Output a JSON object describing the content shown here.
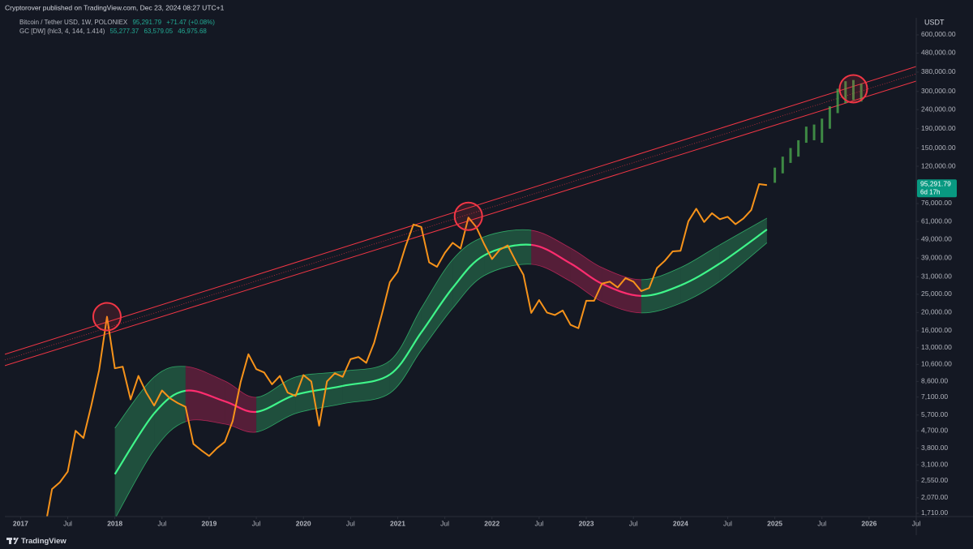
{
  "chart_data": {
    "type": "line",
    "header": "Cryptorover published on TradingView.com, Dec 23, 2024 08:27 UTC+1",
    "legend_last": "95,291.79",
    "legend_change": "+71.47 (+0.08%)",
    "currency": "USDT",
    "brand": "TradingView",
    "log_scale": true,
    "grid": false,
    "xlim": [
      "2016-11",
      "2026-07"
    ],
    "ylim": [
      1643,
      739000
    ],
    "yticks": [
      {
        "value": 600000,
        "label": "600,000.00"
      },
      {
        "value": 480000,
        "label": "480,000.00"
      },
      {
        "value": 380000,
        "label": "380,000.00"
      },
      {
        "value": 300000,
        "label": "300,000.00"
      },
      {
        "value": 240000,
        "label": "240,000.00"
      },
      {
        "value": 190000,
        "label": "190,000.00"
      },
      {
        "value": 150000,
        "label": "150,000.00"
      },
      {
        "value": 120000,
        "label": "120,000.00"
      },
      {
        "value": 76000,
        "label": "76,000.00"
      },
      {
        "value": 61000,
        "label": "61,000.00"
      },
      {
        "value": 49000,
        "label": "49,000.00"
      },
      {
        "value": 39000,
        "label": "39,000.00"
      },
      {
        "value": 31000,
        "label": "31,000.00"
      },
      {
        "value": 25000,
        "label": "25,000.00"
      },
      {
        "value": 20000,
        "label": "20,000.00"
      },
      {
        "value": 16000,
        "label": "16,000.00"
      },
      {
        "value": 13000,
        "label": "13,000.00"
      },
      {
        "value": 10600,
        "label": "10,600.00"
      },
      {
        "value": 8600,
        "label": "8,600.00"
      },
      {
        "value": 7100,
        "label": "7,100.00"
      },
      {
        "value": 5700,
        "label": "5,700.00"
      },
      {
        "value": 4700,
        "label": "4,700.00"
      },
      {
        "value": 3800,
        "label": "3,800.00"
      },
      {
        "value": 3100,
        "label": "3,100.00"
      },
      {
        "value": 2550,
        "label": "2,550.00"
      },
      {
        "value": 2070,
        "label": "2,070.00"
      },
      {
        "value": 1710,
        "label": "1,710.00"
      }
    ],
    "xticks": [
      {
        "value": "2017-01",
        "label": "2017"
      },
      {
        "value": "2017-07",
        "label": "Jul"
      },
      {
        "value": "2018-01",
        "label": "2018"
      },
      {
        "value": "2018-07",
        "label": "Jul"
      },
      {
        "value": "2019-01",
        "label": "2019"
      },
      {
        "value": "2019-07",
        "label": "Jul"
      },
      {
        "value": "2020-01",
        "label": "2020"
      },
      {
        "value": "2020-07",
        "label": "Jul"
      },
      {
        "value": "2021-01",
        "label": "2021"
      },
      {
        "value": "2021-07",
        "label": "Jul"
      },
      {
        "value": "2022-01",
        "label": "2022"
      },
      {
        "value": "2022-07",
        "label": "Jul"
      },
      {
        "value": "2023-01",
        "label": "2023"
      },
      {
        "value": "2023-07",
        "label": "Jul"
      },
      {
        "value": "2024-01",
        "label": "2024"
      },
      {
        "value": "2024-07",
        "label": "Jul"
      },
      {
        "value": "2025-01",
        "label": "2025"
      },
      {
        "value": "2025-07",
        "label": "Jul"
      },
      {
        "value": "2026-01",
        "label": "2026"
      },
      {
        "value": "2026-07",
        "label": "Jul"
      }
    ],
    "x": [
      "2017-04",
      "2017-05",
      "2017-06",
      "2017-07",
      "2017-08",
      "2017-09",
      "2017-10",
      "2017-11",
      "2017-12",
      "2018-01",
      "2018-02",
      "2018-03",
      "2018-04",
      "2018-05",
      "2018-06",
      "2018-07",
      "2018-08",
      "2018-09",
      "2018-10",
      "2018-11",
      "2018-12",
      "2019-01",
      "2019-02",
      "2019-03",
      "2019-04",
      "2019-05",
      "2019-06",
      "2019-07",
      "2019-08",
      "2019-09",
      "2019-10",
      "2019-11",
      "2019-12",
      "2020-01",
      "2020-02",
      "2020-03",
      "2020-04",
      "2020-05",
      "2020-06",
      "2020-07",
      "2020-08",
      "2020-09",
      "2020-10",
      "2020-11",
      "2020-12",
      "2021-01",
      "2021-02",
      "2021-03",
      "2021-04",
      "2021-05",
      "2021-06",
      "2021-07",
      "2021-08",
      "2021-09",
      "2021-10",
      "2021-11",
      "2021-12",
      "2022-01",
      "2022-02",
      "2022-03",
      "2022-04",
      "2022-05",
      "2022-06",
      "2022-07",
      "2022-08",
      "2022-09",
      "2022-10",
      "2022-11",
      "2022-12",
      "2023-01",
      "2023-02",
      "2023-03",
      "2023-04",
      "2023-05",
      "2023-06",
      "2023-07",
      "2023-08",
      "2023-09",
      "2023-10",
      "2023-11",
      "2023-12",
      "2024-01",
      "2024-02",
      "2024-03",
      "2024-04",
      "2024-05",
      "2024-06",
      "2024-07",
      "2024-08",
      "2024-09",
      "2024-10",
      "2024-11",
      "2024-12"
    ],
    "series": [
      {
        "name": "Bitcoin / Tether USD, 1W, POLONIEX",
        "color": "#f7931a",
        "values": [
          1350,
          2300,
          2500,
          2850,
          4700,
          4300,
          6400,
          9900,
          19000,
          10100,
          10300,
          6900,
          9200,
          7500,
          6400,
          7700,
          7000,
          6600,
          6300,
          4000,
          3700,
          3450,
          3800,
          4100,
          5300,
          8500,
          12000,
          10000,
          9600,
          8300,
          9200,
          7500,
          7200,
          9300,
          8600,
          5000,
          8600,
          9500,
          9100,
          11300,
          11600,
          10800,
          13800,
          19700,
          29000,
          33000,
          45000,
          58800,
          57000,
          37000,
          35000,
          41500,
          47000,
          43800,
          64000,
          57000,
          46300,
          38500,
          43200,
          45500,
          37700,
          31800,
          19900,
          23300,
          20000,
          19400,
          20500,
          17200,
          16500,
          23100,
          23100,
          28500,
          29200,
          27200,
          30500,
          29200,
          26000,
          27000,
          34500,
          37700,
          42300,
          42600,
          61200,
          71300,
          60600,
          67500,
          62700,
          64600,
          59000,
          63300,
          70200,
          96400,
          95291.79
        ]
      }
    ],
    "last_price": {
      "value": 95291.79,
      "label": "95,291.79"
    },
    "countdown": "6d 17h",
    "band": {
      "name": "GC [DW] (hlc3, 4, 144, 1.414)",
      "value_labels": [
        "55,277.37",
        "63,579.05",
        "46,975.68"
      ],
      "x": [
        "2018-01",
        "2018-06",
        "2018-10",
        "2019-03",
        "2019-07",
        "2019-12",
        "2020-06",
        "2020-12",
        "2021-04",
        "2021-08",
        "2021-12",
        "2022-06",
        "2022-11",
        "2023-03",
        "2023-08",
        "2024-01",
        "2024-06",
        "2024-12"
      ],
      "upper": [
        4858,
        9080,
        10330,
        8640,
        7080,
        9080,
        9740,
        11080,
        21100,
        38300,
        50600,
        54800,
        44040,
        34700,
        29900,
        34700,
        45830,
        63579.05
      ],
      "mid": [
        2760,
        5810,
        7675,
        6740,
        5925,
        7300,
        8140,
        9355,
        15670,
        27080,
        40280,
        45830,
        36490,
        28450,
        24510,
        27880,
        36490,
        55277.37
      ],
      "lower": [
        1597,
        3715,
        5260,
        5105,
        4625,
        5810,
        6545,
        7445,
        12600,
        21100,
        31430,
        36120,
        29310,
        22860,
        19900,
        22410,
        29310,
        46975.68
      ],
      "colors": [
        "#3ff58a",
        "#3ff58a",
        "#ff2d6f",
        "#ff2d6f",
        "#3ff58a",
        "#3ff58a",
        "#3ff58a",
        "#3ff58a",
        "#3ff58a",
        "#3ff58a",
        "#3ff58a",
        "#ff2d6f",
        "#ff2d6f",
        "#ff2d6f",
        "#3ff58a",
        "#3ff58a",
        "#3ff58a",
        "#3ff58a"
      ]
    },
    "trendlines": [
      {
        "color": "#f23645",
        "x": [
          "2016-11",
          "2026-07"
        ],
        "values": [
          11990,
          407300
        ]
      },
      {
        "color": "#f23645",
        "x": [
          "2016-11",
          "2026-07"
        ],
        "values": [
          10430,
          340700
        ]
      }
    ],
    "projection": {
      "color": "#4caf50",
      "x": [
        "2025-01",
        "2025-02",
        "2025-03",
        "2025-04",
        "2025-05",
        "2025-06",
        "2025-07",
        "2025-08",
        "2025-09",
        "2025-10",
        "2025-11",
        "2025-12"
      ],
      "low": [
        98000,
        110000,
        125000,
        135000,
        160000,
        165000,
        160000,
        190000,
        230000,
        260000,
        270000,
        265000
      ],
      "high": [
        118000,
        135000,
        150000,
        165000,
        195000,
        200000,
        215000,
        250000,
        310000,
        340000,
        345000,
        330000
      ]
    },
    "highlights": {
      "color": "#f23645",
      "x": [
        "2017-12",
        "2021-10",
        "2025-11"
      ],
      "values": [
        19000,
        65000,
        310000
      ]
    }
  }
}
